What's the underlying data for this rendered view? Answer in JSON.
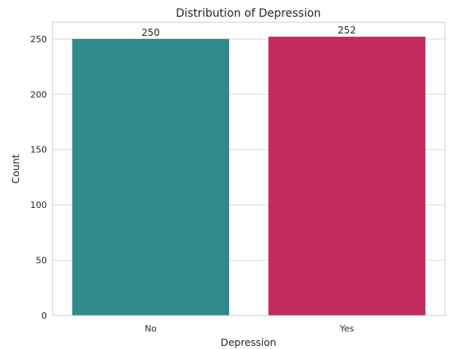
{
  "chart_data": {
    "type": "bar",
    "title": "Distribution of Depression",
    "xlabel": "Depression",
    "ylabel": "Count",
    "categories": [
      "No",
      "Yes"
    ],
    "values": [
      250,
      252
    ],
    "data_labels": [
      "250",
      "252"
    ],
    "colors": [
      "#30898a",
      "#c22c5d"
    ],
    "ylim": [
      0,
      265
    ],
    "yticks": [
      0,
      50,
      100,
      150,
      200,
      250
    ],
    "ytick_labels": [
      "0",
      "50",
      "100",
      "150",
      "200",
      "250"
    ],
    "grid": true,
    "grid_axis": "y",
    "grid_color": "#d9d9d9",
    "frame_color": "#cccccc"
  }
}
